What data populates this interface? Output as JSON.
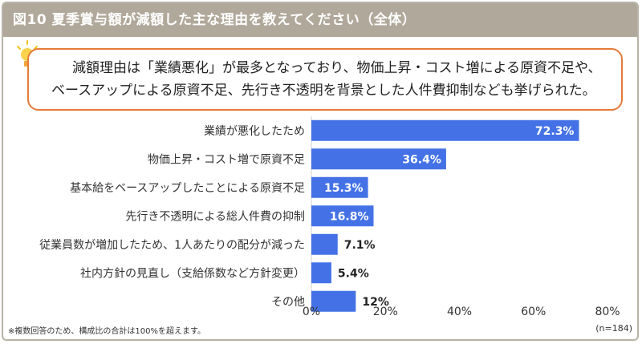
{
  "title": "図10  夏季賞与額が減額した主な理由を教えてください（全体）",
  "callout": {
    "line1": "減額理由は「業績悪化」が最多となっており、物価上昇・コスト増による原資不足や、",
    "line2": "ベースアップによる原資不足、先行き不透明を背景とした人件費抑制なども挙げられた。"
  },
  "icons": {
    "callout_icon": "lightbulb-icon"
  },
  "colors": {
    "bar": "#4472e6",
    "title_bg": "#b0a89a",
    "callout_border": "#e57a3a"
  },
  "chart_data": {
    "type": "bar",
    "orientation": "horizontal",
    "categories": [
      "業績が悪化したため",
      "物価上昇・コスト増で原資不足",
      "基本給をベースアップしたことによる原資不足",
      "先行き不透明による総人件費の抑制",
      "従業員数が増加したため、1人あたりの配分が減った",
      "社内方針の見直し（支給係数など方針変更）",
      "その他"
    ],
    "values": [
      72.3,
      36.4,
      15.3,
      16.8,
      7.1,
      5.4,
      12
    ],
    "value_labels": [
      "72.3%",
      "36.4%",
      "15.3%",
      "16.8%",
      "7.1%",
      "5.4%",
      "12%"
    ],
    "xlim": [
      0,
      80
    ],
    "xticks": [
      "0%",
      "20%",
      "40%",
      "60%",
      "80%"
    ],
    "grid": false
  },
  "footnote": "※複数回答のため、構成比の合計は100%を超えます。",
  "n_label": "(n=184)"
}
